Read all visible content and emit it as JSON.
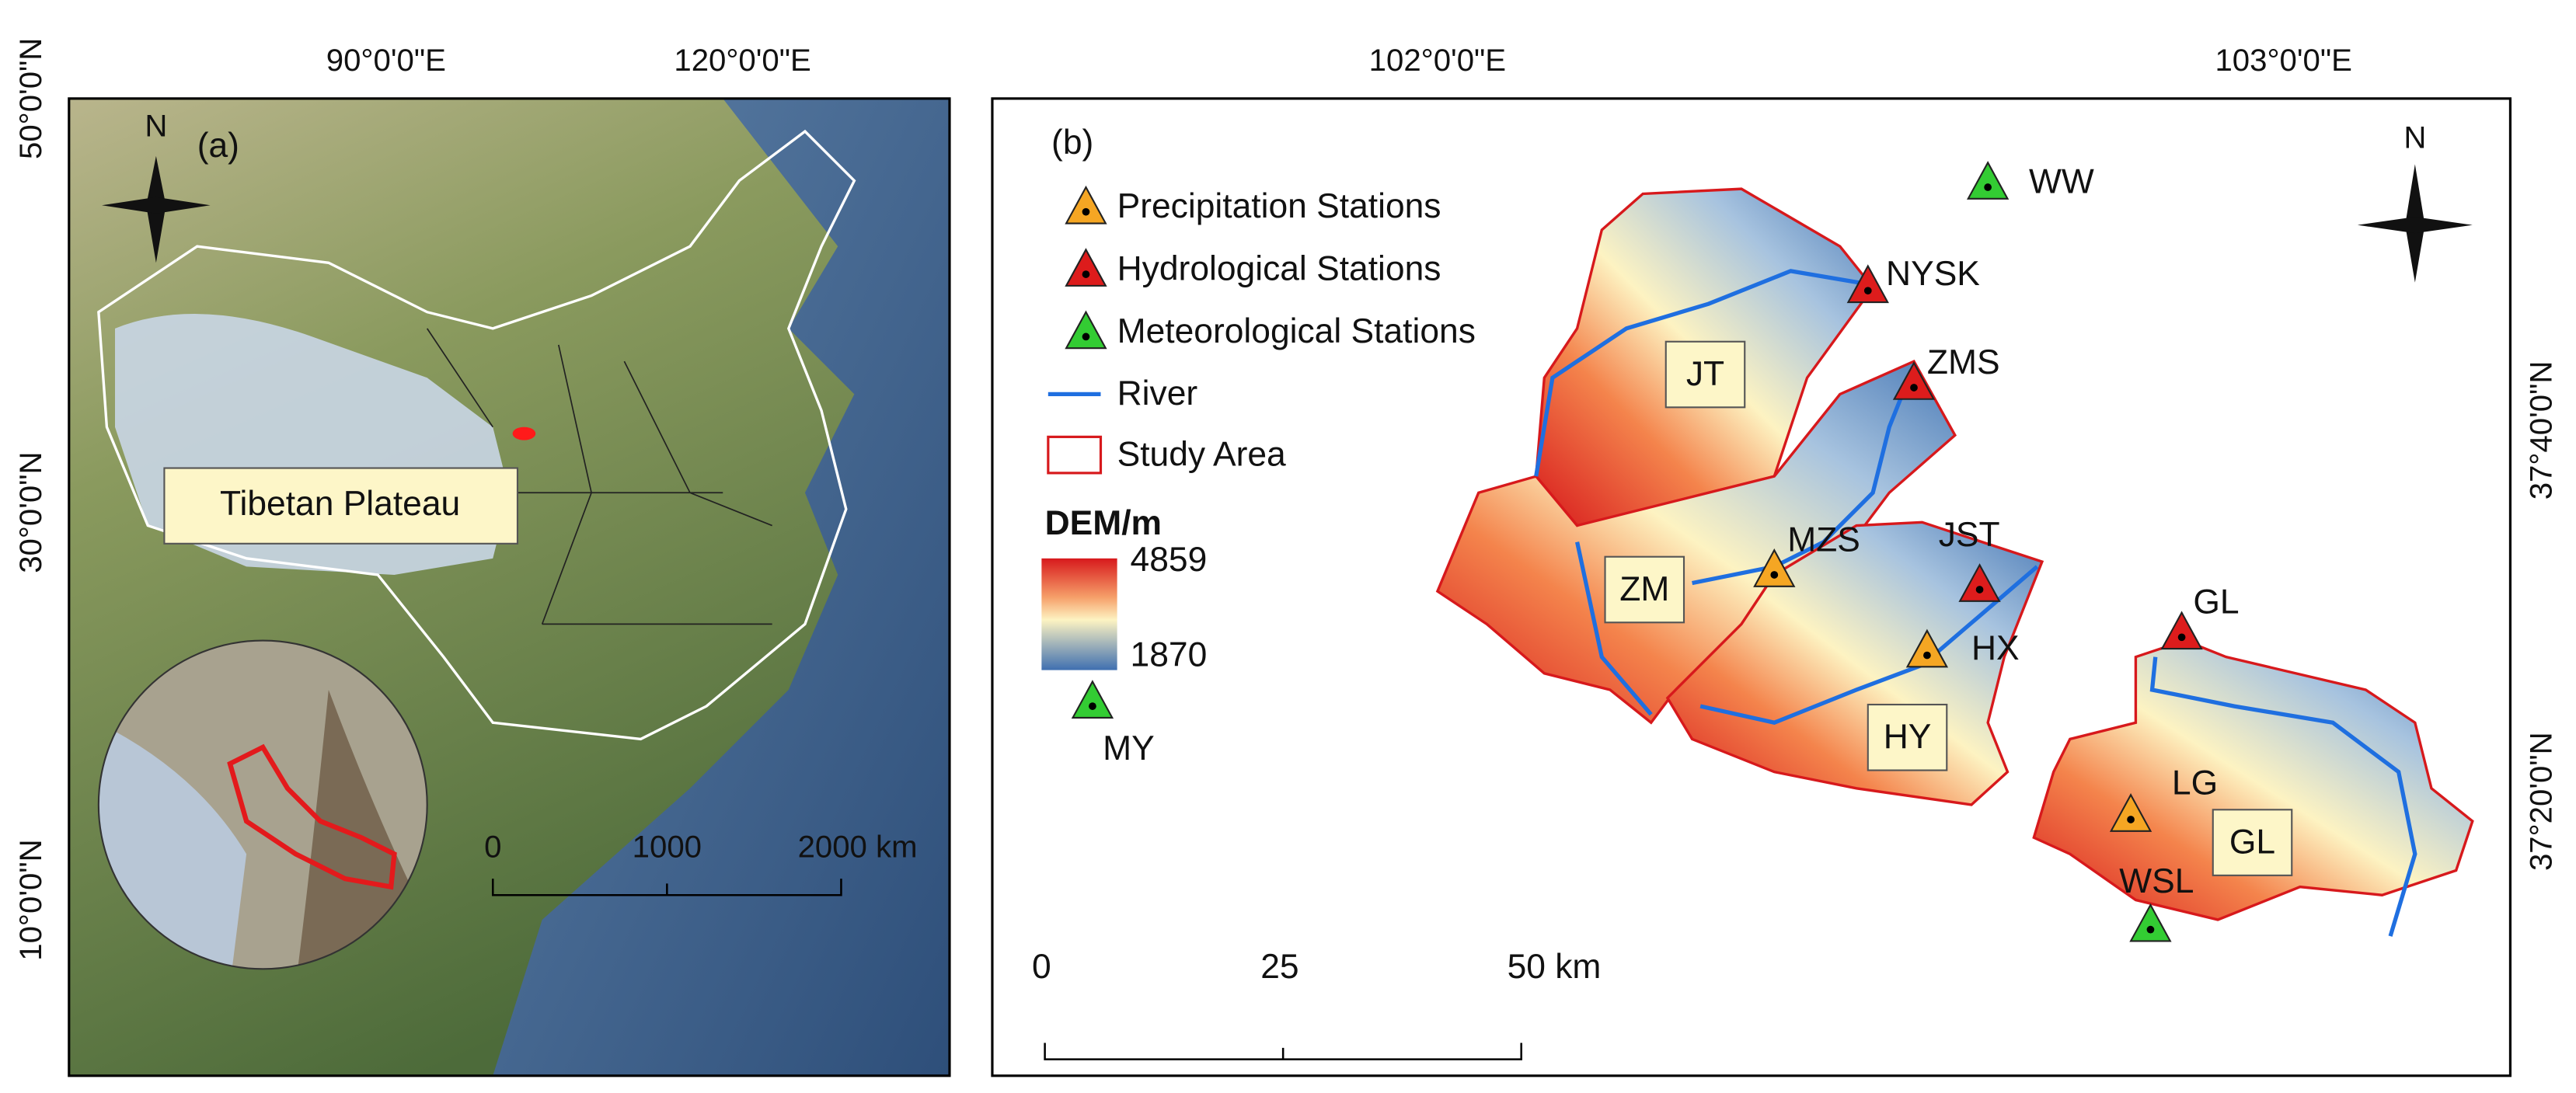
{
  "panel_a": {
    "label": "(a)",
    "north": "N",
    "lon_labels": [
      "90°0'0\"E",
      "120°0'0\"E"
    ],
    "lat_labels": [
      "50°0'0\"N",
      "30°0'0\"N",
      "10°0'0\"N"
    ],
    "region_label": "Tibetan Plateau",
    "scale_labels": [
      "0",
      "1000",
      "2000 km"
    ]
  },
  "panel_b": {
    "label": "(b)",
    "north": "N",
    "lon_labels": [
      "102°0'0\"E",
      "103°0'0\"E"
    ],
    "lat_labels": [
      "37°40'0\"N",
      "37°20'0\"N"
    ],
    "legend": {
      "items": [
        "Precipitation Stations",
        "Hydrological Stations",
        "Meteorological Stations",
        "River",
        "Study Area"
      ],
      "dem_title": "DEM/m",
      "dem_max": "4859",
      "dem_min": "1870"
    },
    "basins": [
      "JT",
      "ZM",
      "HY",
      "GL"
    ],
    "stations": [
      {
        "name": "WW",
        "color": "#33cc33"
      },
      {
        "name": "NYSK",
        "color": "#dd1c1c"
      },
      {
        "name": "ZMS",
        "color": "#dd1c1c"
      },
      {
        "name": "MZS",
        "color": "#f5a623"
      },
      {
        "name": "JST",
        "color": "#dd1c1c"
      },
      {
        "name": "HX",
        "color": "#f5a623"
      },
      {
        "name": "GL",
        "color": "#dd1c1c"
      },
      {
        "name": "LG",
        "color": "#f5a623"
      },
      {
        "name": "WSL",
        "color": "#33cc33"
      },
      {
        "name": "MY",
        "color": "#33cc33"
      }
    ],
    "scale_labels": [
      "0",
      "25",
      "50 km"
    ]
  }
}
